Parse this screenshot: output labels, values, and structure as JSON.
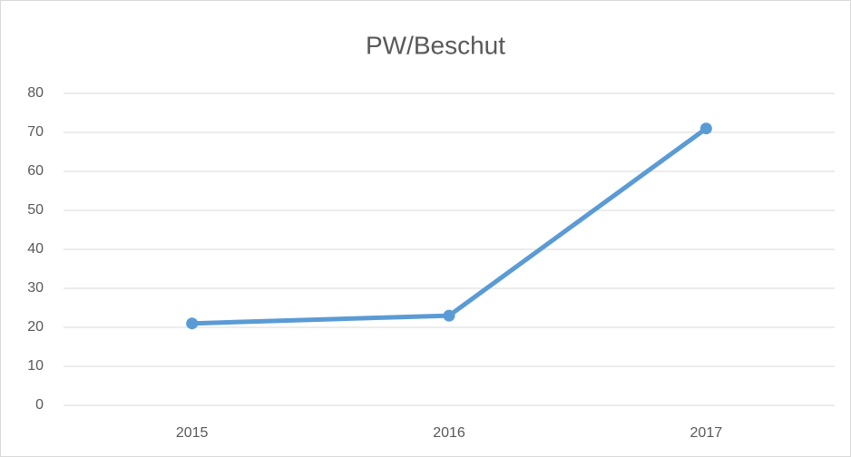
{
  "chart_data": {
    "type": "line",
    "title": "PW/Beschut",
    "categories": [
      "2015",
      "2016",
      "2017"
    ],
    "values": [
      21,
      23,
      71
    ],
    "color": "#5b9bd5",
    "ylim": [
      0,
      80
    ],
    "yticks": [
      0,
      10,
      20,
      30,
      40,
      50,
      60,
      70,
      80
    ],
    "grid": true
  }
}
